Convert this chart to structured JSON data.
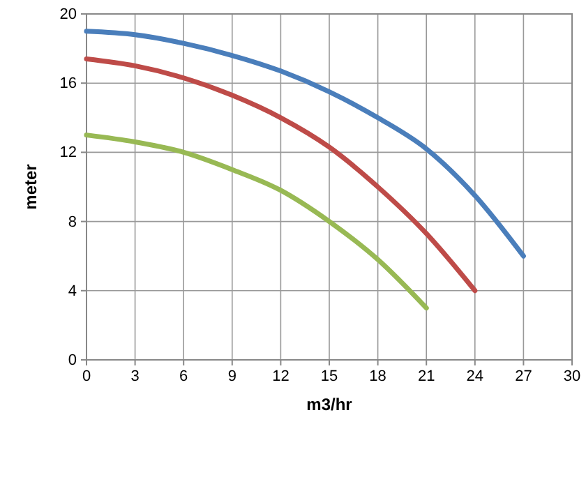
{
  "chart_data": {
    "type": "line",
    "xlabel": "m3/hr",
    "ylabel": "meter",
    "series": [
      {
        "color": "#4a7ebb",
        "x": [
          0,
          3,
          6,
          9,
          12,
          15,
          18,
          21,
          24,
          27
        ],
        "values": [
          19,
          18.8,
          18.3,
          17.6,
          16.7,
          15.5,
          14,
          12.2,
          9.5,
          6
        ]
      },
      {
        "color": "#be4b48",
        "x": [
          0,
          3,
          6,
          9,
          12,
          15,
          18,
          21,
          24
        ],
        "values": [
          17.4,
          17,
          16.3,
          15.3,
          14,
          12.3,
          10,
          7.3,
          4
        ]
      },
      {
        "color": "#98b954",
        "x": [
          0,
          3,
          6,
          9,
          12,
          15,
          18,
          21
        ],
        "values": [
          13,
          12.6,
          12,
          11,
          9.8,
          8,
          5.8,
          3
        ]
      }
    ],
    "xlim": [
      0,
      30
    ],
    "xticks": [
      0,
      3,
      6,
      9,
      12,
      15,
      18,
      21,
      24,
      27,
      30
    ],
    "ylim": [
      0,
      20
    ],
    "yticks": [
      0,
      4,
      8,
      12,
      16,
      20
    ],
    "grid": true,
    "marker": "none",
    "line_style": "solid"
  }
}
